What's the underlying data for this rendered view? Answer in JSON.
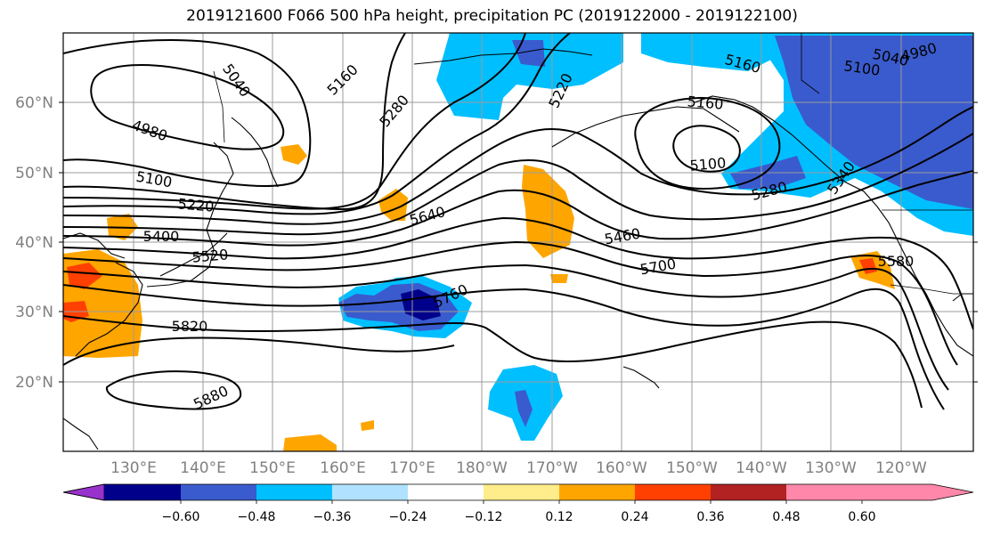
{
  "title": "2019121600 F066 500 hPa height, precipitation PC (2019122000 - 2019122100)",
  "map": {
    "lat_labels": [
      "60°N",
      "50°N",
      "40°N",
      "30°N",
      "20°N"
    ],
    "lon_labels": [
      "130°E",
      "140°E",
      "150°E",
      "160°E",
      "170°E",
      "180°W",
      "170°W",
      "160°W",
      "150°W",
      "140°W",
      "130°W",
      "120°W"
    ],
    "contour_labels": [
      "5040",
      "5160",
      "4980",
      "5100",
      "5220",
      "5280",
      "5160",
      "5100",
      "5040",
      "4980",
      "5220",
      "5160",
      "5100",
      "5280",
      "5340",
      "5400",
      "5460",
      "5520",
      "5640",
      "5580",
      "5700",
      "5760",
      "5820",
      "5880"
    ]
  },
  "colorbar": {
    "colors": [
      "#9932CC",
      "#00008B",
      "#3A5BCD",
      "#00BFFF",
      "#B0E2FF",
      "#FFFFFF",
      "#FFEC8B",
      "#FFA500",
      "#FF4000",
      "#B22222",
      "#FF88AA"
    ],
    "ticks": [
      "−0.60",
      "−0.48",
      "−0.36",
      "−0.24",
      "−0.12",
      "0.12",
      "0.24",
      "0.36",
      "0.48",
      "0.60"
    ]
  }
}
